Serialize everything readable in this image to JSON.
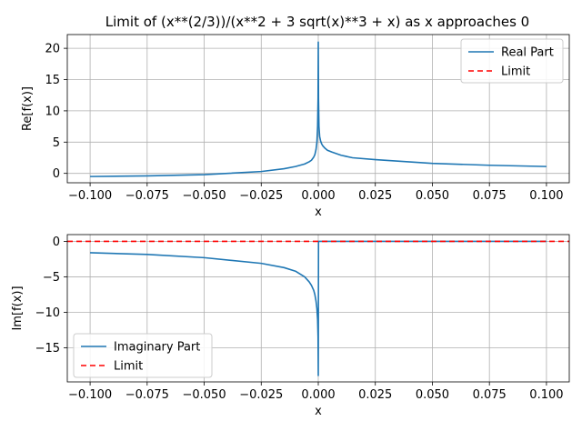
{
  "figure": {
    "title": "Limit of (x**(2/3))/(x**2 + 3 sqrt(x)**3 + x) as x approaches 0"
  },
  "chart_data": [
    {
      "type": "line",
      "xlabel": "x",
      "ylabel": "Re[f(x)]",
      "xlim": [
        -0.11,
        0.11
      ],
      "ylim": [
        -1.5,
        22.2
      ],
      "x_ticks": [
        -0.1,
        -0.075,
        -0.05,
        -0.025,
        0.0,
        0.025,
        0.05,
        0.075,
        0.1
      ],
      "x_tick_labels": [
        "−0.100",
        "−0.075",
        "−0.050",
        "−0.025",
        "0.000",
        "0.025",
        "0.050",
        "0.075",
        "0.100"
      ],
      "y_ticks": [
        0,
        5,
        10,
        15,
        20
      ],
      "y_tick_labels": [
        "0",
        "5",
        "10",
        "15",
        "20"
      ],
      "grid": true,
      "legend_position": "upper right",
      "series": [
        {
          "name": "Real Part",
          "color": "#1f77b4",
          "style": "solid",
          "x": [
            -0.1,
            -0.075,
            -0.05,
            -0.025,
            -0.015,
            -0.01,
            -0.006,
            -0.004,
            -0.003,
            -0.002,
            -0.0015,
            -0.001,
            -0.0006,
            -0.0003,
            -0.0001,
            0.0,
            0.0001,
            0.0003,
            0.0006,
            0.001,
            0.0015,
            0.002,
            0.003,
            0.004,
            0.006,
            0.01,
            0.015,
            0.025,
            0.05,
            0.075,
            0.1
          ],
          "y": [
            -0.5,
            -0.4,
            -0.2,
            0.3,
            0.75,
            1.1,
            1.5,
            1.85,
            2.1,
            2.6,
            3.0,
            3.8,
            5.0,
            7.5,
            12.0,
            21.0,
            12.0,
            7.5,
            5.9,
            5.2,
            4.7,
            4.4,
            4.0,
            3.7,
            3.4,
            2.9,
            2.5,
            2.2,
            1.6,
            1.3,
            1.1
          ]
        },
        {
          "name": "Limit",
          "color": "#ff0000",
          "style": "dashed",
          "x": [
            -0.11,
            0.11
          ],
          "y": [
            0,
            0
          ],
          "visible": false
        }
      ]
    },
    {
      "type": "line",
      "xlabel": "x",
      "ylabel": "Im[f(x)]",
      "xlim": [
        -0.11,
        0.11
      ],
      "ylim": [
        -19.8,
        0.95
      ],
      "x_ticks": [
        -0.1,
        -0.075,
        -0.05,
        -0.025,
        0.0,
        0.025,
        0.05,
        0.075,
        0.1
      ],
      "x_tick_labels": [
        "−0.100",
        "−0.075",
        "−0.050",
        "−0.025",
        "0.000",
        "0.025",
        "0.050",
        "0.075",
        "0.100"
      ],
      "y_ticks": [
        -15,
        -10,
        -5,
        0
      ],
      "y_tick_labels": [
        "−15",
        "−10",
        "−5",
        "0"
      ],
      "grid": true,
      "legend_position": "lower left",
      "series": [
        {
          "name": "Imaginary Part",
          "color": "#1f77b4",
          "style": "solid",
          "x": [
            -0.1,
            -0.075,
            -0.05,
            -0.025,
            -0.015,
            -0.01,
            -0.006,
            -0.004,
            -0.003,
            -0.002,
            -0.0015,
            -0.001,
            -0.0006,
            -0.0003,
            -0.0001,
            0.0,
            0.0001,
            0.0003,
            0.001,
            0.01,
            0.025,
            0.05,
            0.075,
            0.1
          ],
          "y": [
            -1.6,
            -1.85,
            -2.3,
            -3.1,
            -3.7,
            -4.2,
            -5.0,
            -5.7,
            -6.2,
            -6.9,
            -7.5,
            -8.4,
            -9.5,
            -11.0,
            -13.5,
            -18.9,
            0,
            0,
            0,
            0,
            0,
            0,
            0,
            0
          ]
        },
        {
          "name": "Limit",
          "color": "#ff0000",
          "style": "dashed",
          "x": [
            -0.11,
            0.11
          ],
          "y": [
            0,
            0
          ],
          "visible": true
        }
      ]
    }
  ]
}
